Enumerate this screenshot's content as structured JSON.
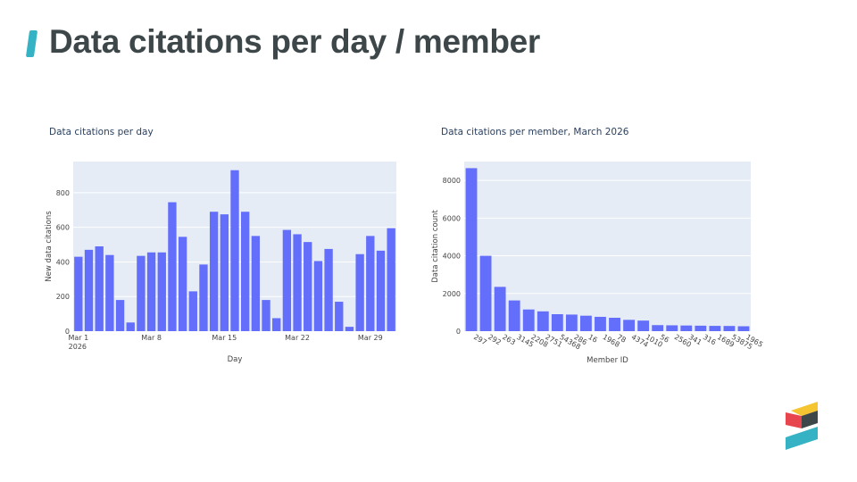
{
  "page": {
    "title": "Data citations per day / member"
  },
  "colors": {
    "accent": "#35b2c4",
    "bar": "#636efa",
    "plot_background": "#e5ecf6",
    "logo_red": "#e8464f",
    "logo_yellow": "#f5c431",
    "logo_dark": "#3d4749",
    "logo_teal": "#35b2c4"
  },
  "logo": {
    "icon": "crossref-logo-icon"
  },
  "chart_data": [
    {
      "type": "bar",
      "title": "Data citations per day",
      "xlabel": "Day",
      "ylabel": "New data citations",
      "categories": [
        "Mar 1",
        "Mar 2",
        "Mar 3",
        "Mar 4",
        "Mar 5",
        "Mar 6",
        "Mar 7",
        "Mar 8",
        "Mar 9",
        "Mar 10",
        "Mar 11",
        "Mar 12",
        "Mar 13",
        "Mar 14",
        "Mar 15",
        "Mar 16",
        "Mar 17",
        "Mar 18",
        "Mar 19",
        "Mar 20",
        "Mar 21",
        "Mar 22",
        "Mar 23",
        "Mar 24",
        "Mar 25",
        "Mar 26",
        "Mar 27",
        "Mar 28",
        "Mar 29",
        "Mar 30",
        "Mar 31"
      ],
      "values": [
        430,
        470,
        490,
        440,
        180,
        50,
        435,
        455,
        455,
        745,
        545,
        230,
        385,
        690,
        675,
        930,
        690,
        550,
        180,
        75,
        585,
        560,
        515,
        405,
        475,
        170,
        25,
        445,
        550,
        465,
        595
      ],
      "xticks": [
        {
          "index": 0,
          "label": "Mar 1",
          "sublabel": "2026"
        },
        {
          "index": 7,
          "label": "Mar 8",
          "sublabel": ""
        },
        {
          "index": 14,
          "label": "Mar 15",
          "sublabel": ""
        },
        {
          "index": 21,
          "label": "Mar 22",
          "sublabel": ""
        },
        {
          "index": 28,
          "label": "Mar 29",
          "sublabel": ""
        }
      ],
      "yticks": [
        0,
        200,
        400,
        600,
        800
      ],
      "ylim": [
        0,
        980
      ],
      "grid": true,
      "legend": "none"
    },
    {
      "type": "bar",
      "title": "Data citations per member, March 2026",
      "xlabel": "Member ID",
      "ylabel": "Data citation count",
      "categories": [
        "297",
        "292",
        "263",
        "3145",
        "2208",
        "2751",
        "54368",
        "286",
        "16",
        "1968",
        "78",
        "4374",
        "1010",
        "56",
        "2560",
        "341",
        "316",
        "1689",
        "53875",
        "1965"
      ],
      "values": [
        8650,
        4000,
        2350,
        1630,
        1150,
        1050,
        900,
        880,
        820,
        760,
        710,
        600,
        560,
        320,
        310,
        300,
        290,
        280,
        275,
        260
      ],
      "yticks": [
        0,
        2000,
        4000,
        6000,
        8000
      ],
      "ylim": [
        0,
        9000
      ],
      "grid": true,
      "legend": "none"
    }
  ]
}
